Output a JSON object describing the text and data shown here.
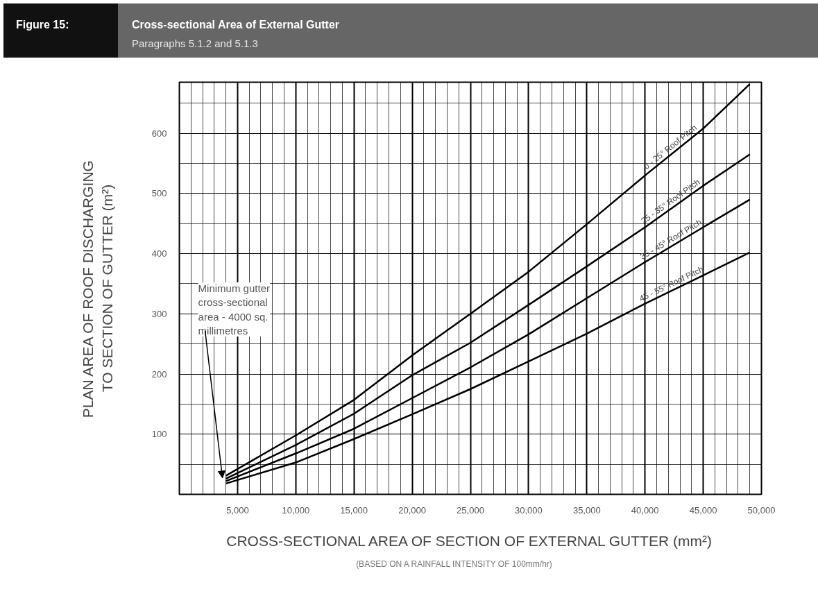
{
  "chart_data": {
    "type": "line",
    "title": "Cross-sectional Area of External Gutter",
    "subtitle": "Paragraphs 5.1.2 and 5.1.3",
    "xlabel": "CROSS-SECTIONAL AREA OF SECTION OF EXTERNAL GUTTER (mm²)",
    "ylabel": "PLAN AREA OF ROOF DISCHARGING\nTO SECTION OF GUTTER (m²)",
    "annotations": [
      "Figure 15:",
      "Minimum gutter cross-sectional area - 4000 sq. millimetres",
      "(BASED ON A RAINFALL INTENSITY OF 100mm/hr)"
    ],
    "x": [
      4000,
      10000,
      15000,
      20000,
      25000,
      30000,
      35000,
      40000,
      45000,
      49000
    ],
    "series": [
      {
        "name": "0 - 25° Roof Pitch",
        "color": "#000000",
        "values": [
          31,
          98,
          157,
          231,
          300,
          370,
          449,
          530,
          608,
          682
        ]
      },
      {
        "name": "25 - 35° Roof Pitch",
        "color": "#000000",
        "values": [
          26,
          82,
          134,
          198,
          252,
          315,
          379,
          444,
          513,
          565
        ]
      },
      {
        "name": "35 - 45° Roof Pitch",
        "color": "#000000",
        "values": [
          22,
          68,
          109,
          160,
          211,
          266,
          326,
          386,
          444,
          490
        ]
      },
      {
        "name": "45 - 55° Roof Pitch",
        "color": "#000000",
        "values": [
          18,
          53,
          92,
          133,
          175,
          221,
          267,
          317,
          364,
          402
        ]
      }
    ],
    "xlim": [
      0,
      50000
    ],
    "xticks": [
      {
        "value": 5000,
        "label": "5,000"
      },
      {
        "value": 10000,
        "label": "10,000"
      },
      {
        "value": 15000,
        "label": "15,000"
      },
      {
        "value": 20000,
        "label": "20,000"
      },
      {
        "value": 25000,
        "label": "25,000"
      },
      {
        "value": 30000,
        "label": "30,000"
      },
      {
        "value": 35000,
        "label": "35,000"
      },
      {
        "value": 40000,
        "label": "40,000"
      },
      {
        "value": 45000,
        "label": "45,000"
      },
      {
        "value": 50000,
        "label": "50,000"
      }
    ],
    "ylim": [
      0,
      685
    ],
    "yticks": [
      100,
      200,
      300,
      400,
      500,
      600
    ],
    "grid": true,
    "line_style": "solid"
  }
}
